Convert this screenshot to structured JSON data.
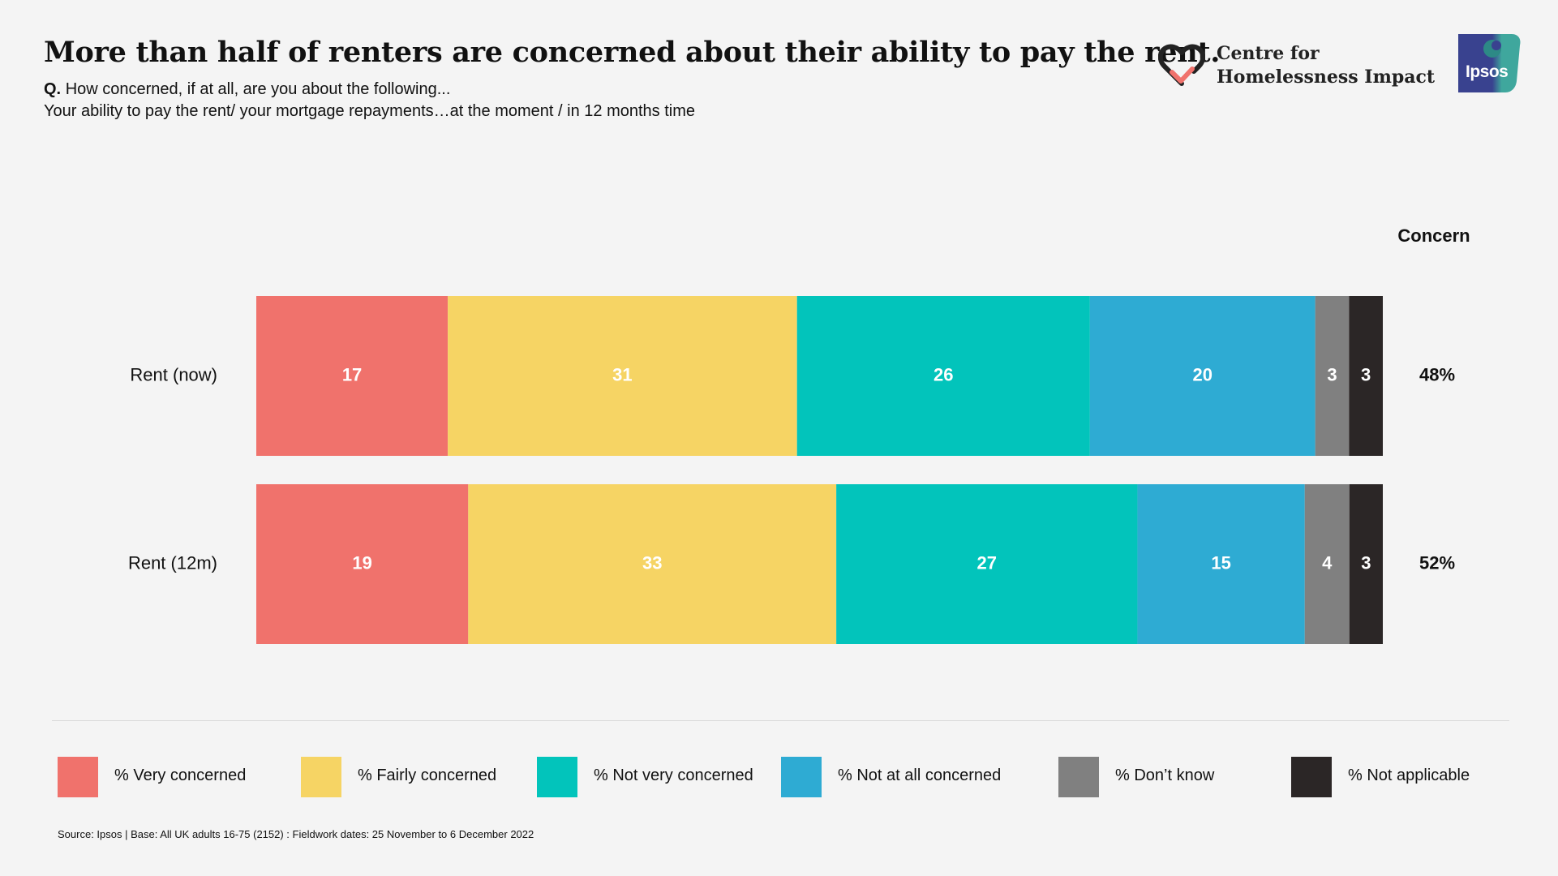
{
  "header": {
    "title": "More than half of renters are concerned about their ability to pay the rent.",
    "question_prefix": "Q.",
    "question_text": "How concerned, if at all, are you about the following...",
    "question_line2": "Your ability to pay the rent/ your mortgage repayments…at the moment / in 12 months time"
  },
  "branding": {
    "chi_line1": "Centre for",
    "chi_line2": "Homelessness Impact",
    "chi_icon": "heart-check-icon",
    "ipsos_text": "Ipsos",
    "ipsos_colors": [
      "#39428f",
      "#3fa79d"
    ]
  },
  "concern_header": "Concern",
  "chart_data": {
    "type": "bar",
    "orientation": "horizontal",
    "stacked": true,
    "categories": [
      "Rent (now)",
      "Rent (12m)"
    ],
    "series": [
      {
        "name": "% Very concerned",
        "color": "#f0726c",
        "values": [
          17,
          19
        ]
      },
      {
        "name": "% Fairly concerned",
        "color": "#f6d464",
        "values": [
          31,
          33
        ]
      },
      {
        "name": "% Not very concerned",
        "color": "#02c4bb",
        "values": [
          26,
          27
        ]
      },
      {
        "name": "% Not at all concerned",
        "color": "#2eabd3",
        "values": [
          20,
          15
        ]
      },
      {
        "name": "% Don’t know",
        "color": "#808080",
        "values": [
          3,
          4
        ]
      },
      {
        "name": "% Not applicable",
        "color": "#2b2626",
        "values": [
          3,
          3
        ]
      }
    ],
    "totals": [
      100,
      101
    ],
    "concern_values": [
      "48%",
      "52%"
    ],
    "xlim": [
      0,
      100
    ],
    "grid": false,
    "legend_position": "bottom"
  },
  "footer": {
    "source": "Source: Ipsos | Base: All UK adults 16-75 (2152) : Fieldwork dates: 25 November to 6 December 2022"
  }
}
